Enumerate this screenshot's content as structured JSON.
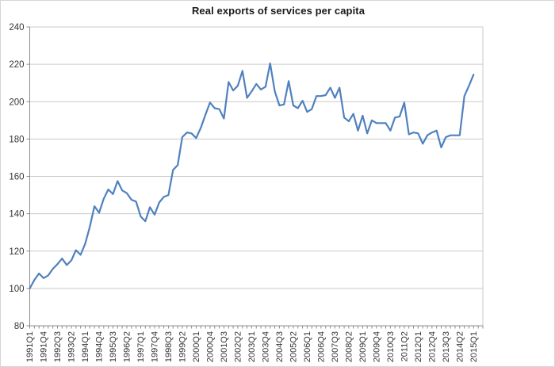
{
  "chart_data": {
    "type": "line",
    "title": "Real exports of services per capita",
    "xlabel": "",
    "ylabel": "",
    "ylim": [
      80,
      240
    ],
    "ytick_step": 20,
    "grid": "horizontal",
    "legend": "none",
    "x_frequency": "quarterly",
    "x_tick_label_every": 3,
    "x_tick_labels_shown": [
      "1991Q1",
      "1991Q4",
      "1992Q3",
      "1993Q2",
      "1994Q1",
      "1994Q4",
      "1995Q3",
      "1996Q2",
      "1997Q1",
      "1997Q4",
      "1998Q3",
      "1999Q2",
      "2000Q1",
      "2000Q4",
      "2001Q3",
      "2002Q2",
      "2003Q1",
      "2003Q4",
      "2004Q3",
      "2005Q2",
      "2006Q1",
      "2006Q4",
      "2007Q3",
      "2008Q2",
      "2009Q1",
      "2009Q4",
      "2010Q3",
      "2011Q2",
      "2012Q1",
      "2012Q4",
      "2013Q3",
      "2014Q2",
      "2015Q1"
    ],
    "categories": [
      "1991Q1",
      "1991Q2",
      "1991Q3",
      "1991Q4",
      "1992Q1",
      "1992Q2",
      "1992Q3",
      "1992Q4",
      "1993Q1",
      "1993Q2",
      "1993Q3",
      "1993Q4",
      "1994Q1",
      "1994Q2",
      "1994Q3",
      "1994Q4",
      "1995Q1",
      "1995Q2",
      "1995Q3",
      "1995Q4",
      "1996Q1",
      "1996Q2",
      "1996Q3",
      "1996Q4",
      "1997Q1",
      "1997Q2",
      "1997Q3",
      "1997Q4",
      "1998Q1",
      "1998Q2",
      "1998Q3",
      "1998Q4",
      "1999Q1",
      "1999Q2",
      "1999Q3",
      "1999Q4",
      "2000Q1",
      "2000Q2",
      "2000Q3",
      "2000Q4",
      "2001Q1",
      "2001Q2",
      "2001Q3",
      "2001Q4",
      "2002Q1",
      "2002Q2",
      "2002Q3",
      "2002Q4",
      "2003Q1",
      "2003Q2",
      "2003Q3",
      "2003Q4",
      "2004Q1",
      "2004Q2",
      "2004Q3",
      "2004Q4",
      "2005Q1",
      "2005Q2",
      "2005Q3",
      "2005Q4",
      "2006Q1",
      "2006Q2",
      "2006Q3",
      "2006Q4",
      "2007Q1",
      "2007Q2",
      "2007Q3",
      "2007Q4",
      "2008Q1",
      "2008Q2",
      "2008Q3",
      "2008Q4",
      "2009Q1",
      "2009Q2",
      "2009Q3",
      "2009Q4",
      "2010Q1",
      "2010Q2",
      "2010Q3",
      "2010Q4",
      "2011Q1",
      "2011Q2",
      "2011Q3",
      "2011Q4",
      "2012Q1",
      "2012Q2",
      "2012Q3",
      "2012Q4",
      "2013Q1",
      "2013Q2",
      "2013Q3",
      "2013Q4",
      "2014Q1",
      "2014Q2",
      "2014Q3",
      "2014Q4",
      "2015Q1"
    ],
    "series": [
      {
        "name": "Real exports of services per capita",
        "values": [
          100,
          104.5,
          108,
          105.5,
          107,
          110.5,
          113,
          116,
          112.5,
          115,
          120.5,
          118,
          124,
          133,
          144,
          140.5,
          148,
          153,
          150.5,
          157.5,
          152.5,
          151,
          147.5,
          146.5,
          138.5,
          136,
          143.5,
          139.5,
          146,
          149,
          150,
          163.5,
          166,
          181,
          183.5,
          183,
          180.5,
          186,
          193,
          199.5,
          196.5,
          196,
          191,
          210.5,
          206,
          208.5,
          216.5,
          202,
          205.5,
          209.5,
          206.5,
          208,
          220.5,
          205.5,
          198,
          198.5,
          211,
          198,
          196.5,
          200.5,
          194.5,
          196,
          203,
          203,
          203.5,
          207.5,
          202,
          207.5,
          191.5,
          189.5,
          193.5,
          184.5,
          192.5,
          183,
          190,
          188.5,
          188.5,
          188.5,
          184.5,
          191.5,
          192,
          199.5,
          182.5,
          183.5,
          183,
          177.5,
          182,
          183.5,
          184.5,
          175.5,
          181,
          182,
          182,
          182,
          203,
          208.5,
          214.5
        ]
      }
    ],
    "ytick_labels": [
      "80",
      "100",
      "120",
      "140",
      "160",
      "180",
      "200",
      "220",
      "240"
    ]
  },
  "colors": {
    "line": "#4F81BD",
    "gridline": "#C9C9C9",
    "axis": "#8C8C8C",
    "plot_border": "#C9C9C9",
    "tick_text": "#363636",
    "title_text": "#1A1A1A",
    "background": "#FFFFFF"
  }
}
